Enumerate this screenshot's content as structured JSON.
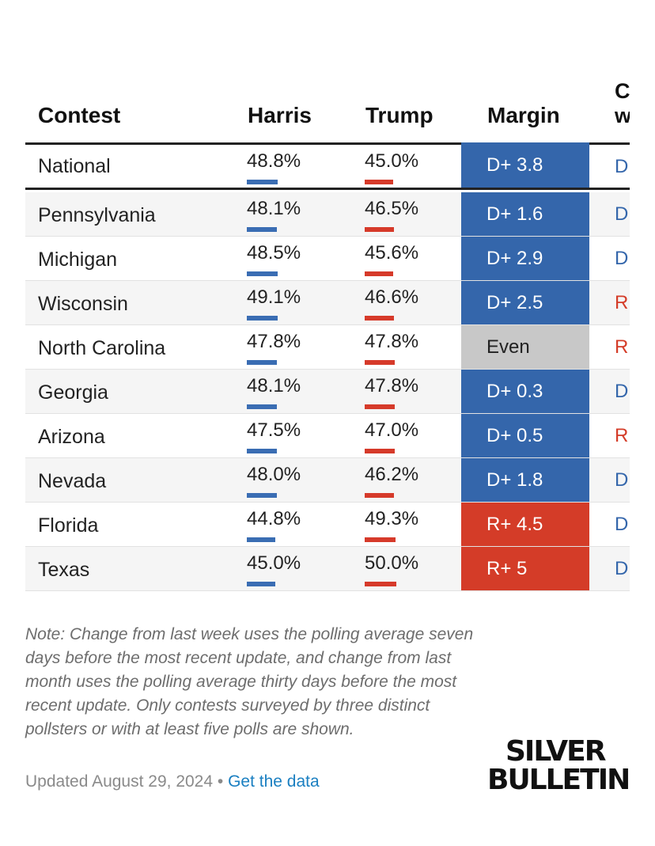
{
  "table": {
    "headers": {
      "contest": "Contest",
      "harris": "Harris",
      "trump": "Trump",
      "margin": "Margin",
      "change": "C fr la w"
    },
    "rows": [
      {
        "contest": "National",
        "harris": "48.8%",
        "trump": "45.0%",
        "harris_value": 48.8,
        "trump_value": 45.0,
        "margin": "D+ 3.8",
        "margin_party": "dem",
        "change": "D",
        "change_party": "dem"
      },
      {
        "contest": "Pennsylvania",
        "harris": "48.1%",
        "trump": "46.5%",
        "harris_value": 48.1,
        "trump_value": 46.5,
        "margin": "D+ 1.6",
        "margin_party": "dem",
        "change": "D",
        "change_party": "dem"
      },
      {
        "contest": "Michigan",
        "harris": "48.5%",
        "trump": "45.6%",
        "harris_value": 48.5,
        "trump_value": 45.6,
        "margin": "D+ 2.9",
        "margin_party": "dem",
        "change": "D",
        "change_party": "dem"
      },
      {
        "contest": "Wisconsin",
        "harris": "49.1%",
        "trump": "46.6%",
        "harris_value": 49.1,
        "trump_value": 46.6,
        "margin": "D+ 2.5",
        "margin_party": "dem",
        "change": "R",
        "change_party": "rep"
      },
      {
        "contest": "North Carolina",
        "harris": "47.8%",
        "trump": "47.8%",
        "harris_value": 47.8,
        "trump_value": 47.8,
        "margin": "Even",
        "margin_party": "even",
        "change": "R",
        "change_party": "rep"
      },
      {
        "contest": "Georgia",
        "harris": "48.1%",
        "trump": "47.8%",
        "harris_value": 48.1,
        "trump_value": 47.8,
        "margin": "D+ 0.3",
        "margin_party": "dem",
        "change": "D",
        "change_party": "dem"
      },
      {
        "contest": "Arizona",
        "harris": "47.5%",
        "trump": "47.0%",
        "harris_value": 47.5,
        "trump_value": 47.0,
        "margin": "D+ 0.5",
        "margin_party": "dem",
        "change": "R",
        "change_party": "rep"
      },
      {
        "contest": "Nevada",
        "harris": "48.0%",
        "trump": "46.2%",
        "harris_value": 48.0,
        "trump_value": 46.2,
        "margin": "D+ 1.8",
        "margin_party": "dem",
        "change": "D",
        "change_party": "dem"
      },
      {
        "contest": "Florida",
        "harris": "44.8%",
        "trump": "49.3%",
        "harris_value": 44.8,
        "trump_value": 49.3,
        "margin": "R+ 4.5",
        "margin_party": "rep",
        "change": "D",
        "change_party": "dem"
      },
      {
        "contest": "Texas",
        "harris": "45.0%",
        "trump": "50.0%",
        "harris_value": 45.0,
        "trump_value": 50.0,
        "margin": "R+ 5",
        "margin_party": "rep",
        "change": "D",
        "change_party": "dem"
      }
    ]
  },
  "footer": {
    "note": "Note: Change from last week uses the polling average seven days before the most recent update, and change from last month uses the polling average thirty days before the most recent update. Only contests surveyed by three distinct pollsters or with at least five polls are shown.",
    "updated": "Updated August 29, 2024",
    "separator": "•",
    "link_label": "Get the data",
    "logo_line1": "SILVER",
    "logo_line2": "BULLETIN"
  },
  "colors": {
    "harris_blue": "#3466ab",
    "trump_red": "#d43c28",
    "even_gray": "#c8c8c8",
    "link_blue": "#1a7fc1"
  }
}
